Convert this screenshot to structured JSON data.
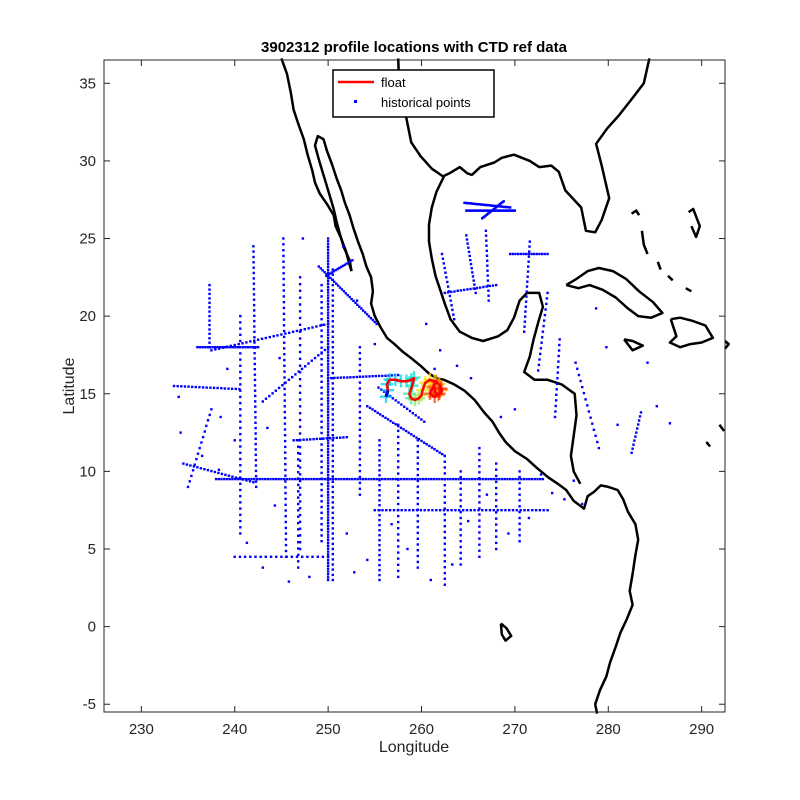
{
  "chart_data": {
    "type": "scatter",
    "title": "3902312 profile locations with CTD ref data",
    "xlabel": "Longitude",
    "ylabel": "Latitude",
    "xlim": [
      226,
      292.5
    ],
    "ylim": [
      -5.5,
      36.5
    ],
    "xticks": [
      230,
      240,
      250,
      260,
      270,
      280,
      290
    ],
    "yticks": [
      -5,
      0,
      5,
      10,
      15,
      20,
      25,
      30,
      35
    ],
    "grid": false,
    "legend_position": "top-center",
    "legend": [
      "float",
      "historical points"
    ],
    "colors": {
      "float": "#ff0000",
      "historical": "#0000ff",
      "coastline": "#000000",
      "start_profile": "#00bfff",
      "end_profile": "#ff3000"
    },
    "series": [
      {
        "name": "float",
        "x": [
          256.2,
          256.4,
          256.3,
          256.6,
          257.2,
          257.8,
          258.4,
          258.9,
          259.2,
          259.0,
          258.7,
          258.9,
          259.3,
          259.7,
          260.0,
          260.1,
          260.4,
          260.9,
          261.4,
          261.9,
          262.2,
          261.8,
          261.5,
          261.3,
          261.6,
          261.2,
          260.9,
          261.4,
          261.9,
          262.1
        ],
        "y": [
          14.8,
          15.2,
          15.6,
          15.9,
          15.9,
          15.8,
          15.8,
          15.9,
          16.0,
          15.5,
          15.0,
          14.7,
          14.6,
          14.7,
          14.9,
          15.2,
          15.7,
          15.9,
          15.8,
          15.6,
          15.2,
          14.9,
          15.1,
          15.5,
          15.8,
          15.4,
          15.0,
          14.8,
          15.0,
          15.3
        ]
      },
      {
        "name": "historical points",
        "x": [],
        "y": []
      }
    ]
  }
}
